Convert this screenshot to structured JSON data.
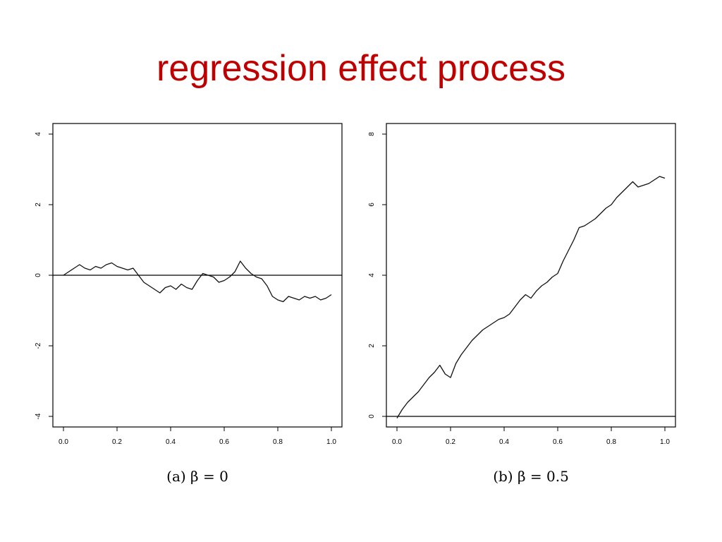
{
  "slide": {
    "title": "regression effect process"
  },
  "chart_data": [
    {
      "type": "line",
      "caption": "(a) β = 0",
      "title": "",
      "xlabel": "",
      "ylabel": "",
      "xlim": [
        0.0,
        1.0
      ],
      "ylim": [
        -4,
        4
      ],
      "xticks": [
        "0.0",
        "0.2",
        "0.4",
        "0.6",
        "0.8",
        "1.0"
      ],
      "yticks": [
        "-4",
        "-2",
        "0",
        "2",
        "4"
      ],
      "hline": 0,
      "grid": false,
      "series": [
        {
          "x": [
            0.0,
            0.02,
            0.04,
            0.06,
            0.08,
            0.1,
            0.12,
            0.14,
            0.16,
            0.18,
            0.2,
            0.22,
            0.24,
            0.26,
            0.28,
            0.3,
            0.32,
            0.34,
            0.36,
            0.38,
            0.4,
            0.42,
            0.44,
            0.46,
            0.48,
            0.5,
            0.52,
            0.54,
            0.56,
            0.58,
            0.6,
            0.62,
            0.64,
            0.66,
            0.68,
            0.7,
            0.72,
            0.74,
            0.76,
            0.78,
            0.8,
            0.82,
            0.84,
            0.86,
            0.88,
            0.9,
            0.92,
            0.94,
            0.96,
            0.98,
            1.0
          ],
          "values": [
            0.0,
            0.1,
            0.2,
            0.3,
            0.2,
            0.15,
            0.25,
            0.2,
            0.3,
            0.35,
            0.25,
            0.2,
            0.15,
            0.2,
            0.0,
            -0.2,
            -0.3,
            -0.4,
            -0.5,
            -0.35,
            -0.3,
            -0.4,
            -0.25,
            -0.35,
            -0.4,
            -0.15,
            0.05,
            0.0,
            -0.05,
            -0.2,
            -0.15,
            -0.05,
            0.1,
            0.4,
            0.2,
            0.05,
            -0.05,
            -0.1,
            -0.3,
            -0.6,
            -0.7,
            -0.75,
            -0.6,
            -0.65,
            -0.7,
            -0.6,
            -0.65,
            -0.6,
            -0.7,
            -0.65,
            -0.55
          ]
        }
      ]
    },
    {
      "type": "line",
      "caption": "(b) β = 0.5",
      "title": "",
      "xlabel": "",
      "ylabel": "",
      "xlim": [
        0.0,
        1.0
      ],
      "ylim": [
        0,
        8
      ],
      "xticks": [
        "0.0",
        "0.2",
        "0.4",
        "0.6",
        "0.8",
        "1.0"
      ],
      "yticks": [
        "0",
        "2",
        "4",
        "6",
        "8"
      ],
      "hline": 0,
      "grid": false,
      "series": [
        {
          "x": [
            0.0,
            0.02,
            0.04,
            0.06,
            0.08,
            0.1,
            0.12,
            0.14,
            0.16,
            0.18,
            0.2,
            0.22,
            0.24,
            0.26,
            0.28,
            0.3,
            0.32,
            0.34,
            0.36,
            0.38,
            0.4,
            0.42,
            0.44,
            0.46,
            0.48,
            0.5,
            0.52,
            0.54,
            0.56,
            0.58,
            0.6,
            0.62,
            0.64,
            0.66,
            0.68,
            0.7,
            0.72,
            0.74,
            0.76,
            0.78,
            0.8,
            0.82,
            0.84,
            0.86,
            0.88,
            0.9,
            0.92,
            0.94,
            0.96,
            0.98,
            1.0
          ],
          "values": [
            -0.05,
            0.2,
            0.4,
            0.55,
            0.7,
            0.9,
            1.1,
            1.25,
            1.45,
            1.2,
            1.1,
            1.5,
            1.75,
            1.95,
            2.15,
            2.3,
            2.45,
            2.55,
            2.65,
            2.75,
            2.8,
            2.9,
            3.1,
            3.3,
            3.45,
            3.35,
            3.55,
            3.7,
            3.8,
            3.95,
            4.05,
            4.4,
            4.7,
            5.0,
            5.35,
            5.4,
            5.5,
            5.6,
            5.75,
            5.9,
            6.0,
            6.2,
            6.35,
            6.5,
            6.65,
            6.5,
            6.55,
            6.6,
            6.7,
            6.8,
            6.75
          ]
        }
      ]
    }
  ]
}
